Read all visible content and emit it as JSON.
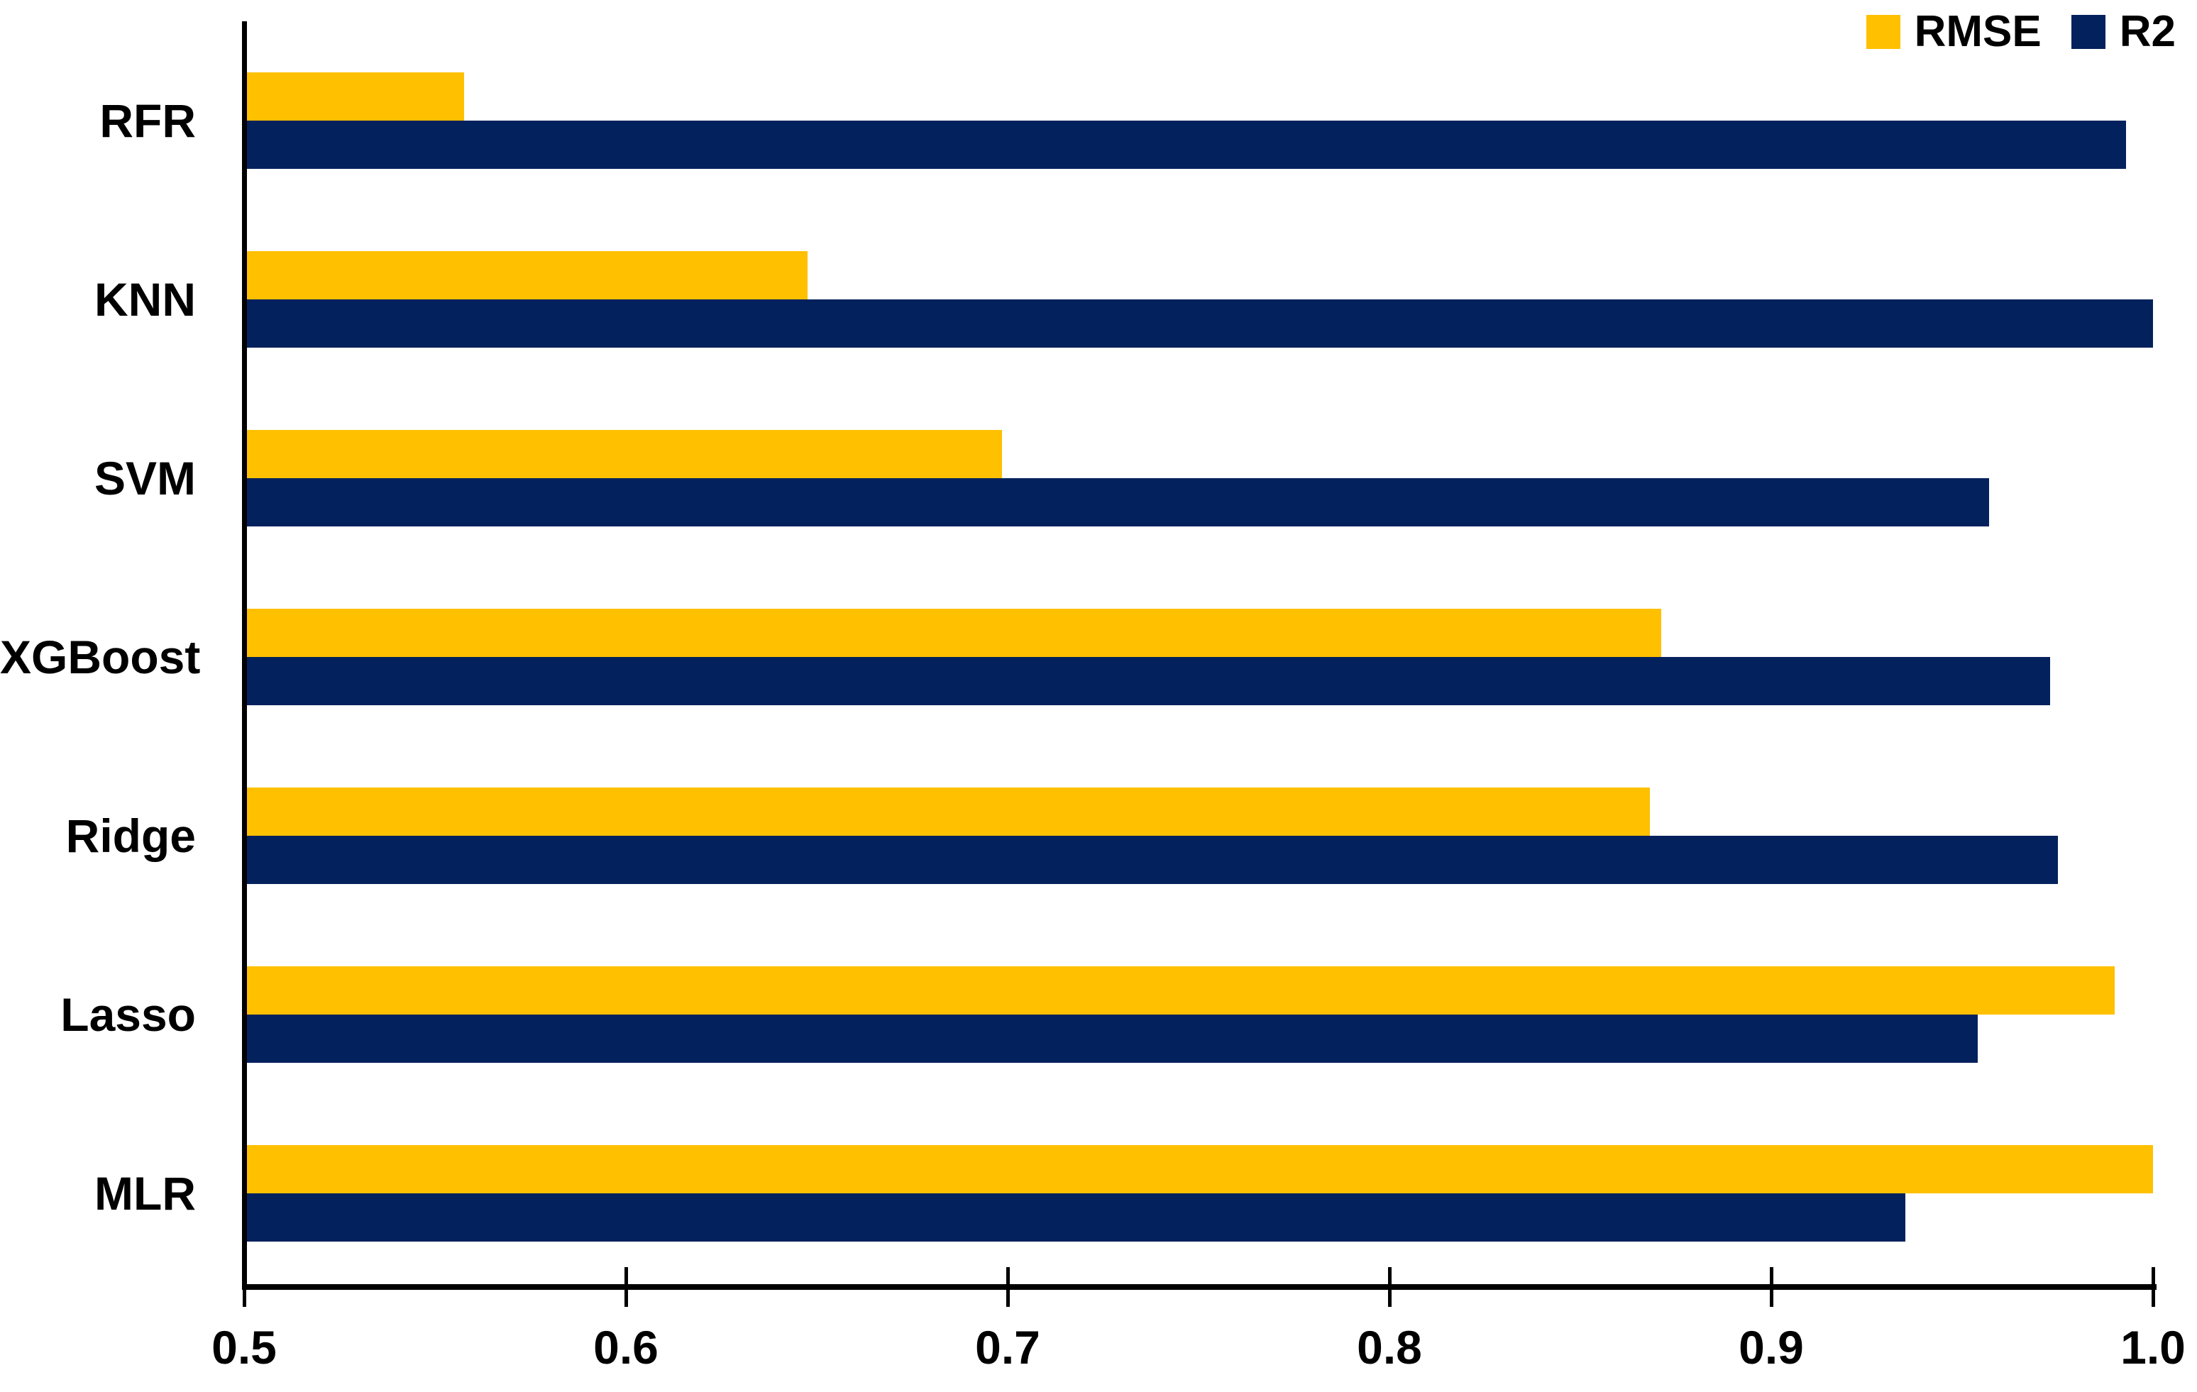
{
  "chart_data": {
    "type": "bar",
    "orientation": "horizontal",
    "title": "",
    "xlabel": "",
    "ylabel": "",
    "xlim": [
      0.5,
      1.0
    ],
    "xticks": [
      "0.5",
      "0.6",
      "0.7",
      "0.8",
      "0.9",
      "1.0"
    ],
    "grid": false,
    "legend_position": "top-right",
    "categories_top_to_bottom": [
      "RFR",
      "KNN",
      "SVM",
      "XGBoost",
      "Ridge",
      "Lasso",
      "MLR"
    ],
    "series": [
      {
        "name": "RMSE",
        "color": "#FFC000",
        "position_in_group": "top",
        "values": [
          0.557,
          0.647,
          0.698,
          0.871,
          0.868,
          0.99,
          1.0
        ]
      },
      {
        "name": "R2",
        "color": "#03215C",
        "position_in_group": "bottom",
        "values": [
          0.993,
          1.0,
          0.957,
          0.973,
          0.975,
          0.954,
          0.935
        ]
      }
    ]
  },
  "legend": {
    "rmse_label": "RMSE",
    "r2_label": "R2"
  },
  "colors": {
    "rmse_bar": "#FFC000",
    "r2_bar": "#03215C",
    "axis": "#000000",
    "text": "#000000",
    "background": "#FFFFFF"
  }
}
